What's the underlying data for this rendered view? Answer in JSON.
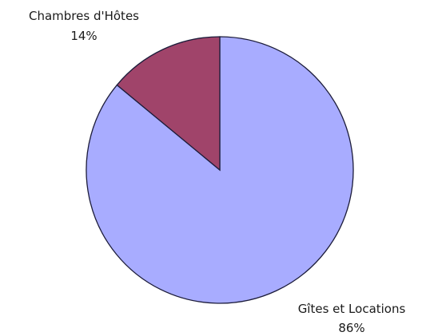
{
  "chart_data": {
    "type": "pie",
    "title": "",
    "slices": [
      {
        "label": "Gîtes et Locations",
        "value": 86,
        "value_label": "86%",
        "color": "#a8acff"
      },
      {
        "label": "Chambres d'Hôtes",
        "value": 14,
        "value_label": "14%",
        "color": "#a0446a"
      }
    ],
    "stroke_color": "#1c1c3a",
    "start_angle": "12 o'clock",
    "direction": "counter-clockwise for the smaller slice"
  }
}
